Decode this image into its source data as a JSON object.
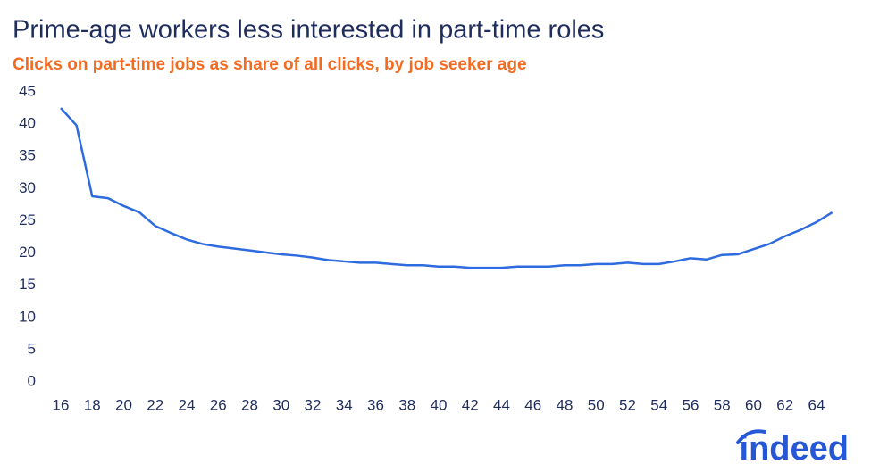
{
  "chart_data": {
    "type": "line",
    "title": "Prime-age workers less interested in part-time roles",
    "subtitle": "Clicks on part-time jobs as share of all clicks, by job seeker age",
    "logo": "indeed",
    "x": [
      16,
      17,
      18,
      19,
      20,
      21,
      22,
      23,
      24,
      25,
      26,
      27,
      28,
      29,
      30,
      31,
      32,
      33,
      34,
      35,
      36,
      37,
      38,
      39,
      40,
      41,
      42,
      43,
      44,
      45,
      46,
      47,
      48,
      49,
      50,
      51,
      52,
      53,
      54,
      55,
      56,
      57,
      58,
      59,
      60,
      61,
      62,
      63,
      64,
      65
    ],
    "values": [
      42.5,
      39.8,
      28.8,
      28.5,
      27.3,
      26.3,
      24.2,
      23.1,
      22.1,
      21.4,
      21.0,
      20.7,
      20.4,
      20.1,
      19.8,
      19.6,
      19.3,
      18.9,
      18.7,
      18.5,
      18.5,
      18.3,
      18.1,
      18.1,
      17.9,
      17.9,
      17.7,
      17.7,
      17.7,
      17.9,
      17.9,
      17.9,
      18.1,
      18.1,
      18.3,
      18.3,
      18.5,
      18.3,
      18.3,
      18.7,
      19.2,
      19.0,
      19.7,
      19.8,
      20.6,
      21.4,
      22.6,
      23.6,
      24.8,
      26.3
    ],
    "color": "#2e6bde",
    "xlim": [
      16,
      65
    ],
    "xticks": [
      16,
      18,
      20,
      22,
      24,
      26,
      28,
      30,
      32,
      34,
      36,
      38,
      40,
      42,
      44,
      46,
      48,
      50,
      52,
      54,
      56,
      58,
      60,
      62,
      64
    ],
    "ylim": [
      0,
      45
    ],
    "yticks": [
      0,
      5,
      10,
      15,
      20,
      25,
      30,
      35,
      40,
      45
    ],
    "grid": false
  }
}
